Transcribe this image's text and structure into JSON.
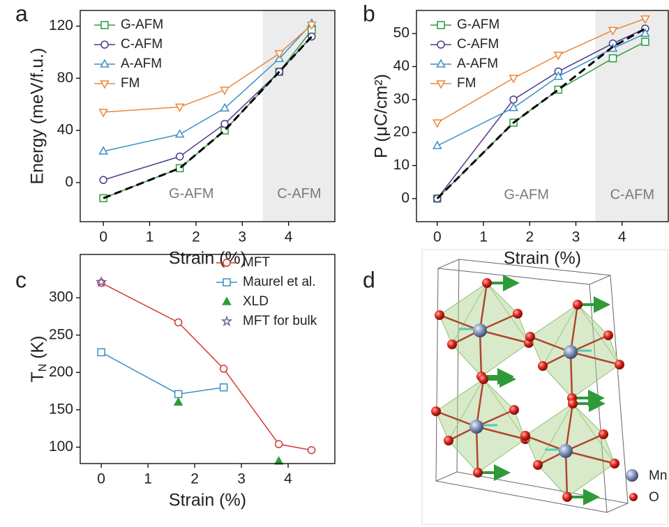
{
  "chart_data": [
    {
      "panel": "a",
      "type": "line",
      "xlabel": "Strain (%)",
      "ylabel": "Energy (meV/f.u.)",
      "x": [
        0,
        1.65,
        2.62,
        3.8,
        4.5
      ],
      "xlim": [
        -0.5,
        5
      ],
      "xticks": [
        0,
        1,
        2,
        3,
        4
      ],
      "ylim": [
        -30,
        132
      ],
      "yticks": [
        0,
        40,
        80,
        120
      ],
      "shaded_xrange": [
        3.44,
        5
      ],
      "legend": "upper left",
      "annotations": [
        {
          "text": "G-AFM",
          "x": 1.9,
          "y": -9
        },
        {
          "text": "C-AFM",
          "x": 4.23,
          "y": -9
        }
      ],
      "series": [
        {
          "name": "G-AFM",
          "color": "#2e9a3e",
          "marker": "square",
          "values": [
            -12,
            11,
            40,
            85,
            117
          ]
        },
        {
          "name": "C-AFM",
          "color": "#4b3a8c",
          "marker": "circle",
          "values": [
            2,
            20,
            45,
            85,
            112
          ]
        },
        {
          "name": "A-AFM",
          "color": "#3b8fc4",
          "marker": "triangle-up",
          "values": [
            24,
            37,
            57,
            95,
            122
          ]
        },
        {
          "name": "FM",
          "color": "#e8873a",
          "marker": "triangle-down",
          "values": [
            54,
            58,
            71,
            99,
            121
          ]
        },
        {
          "color": "#000000",
          "dashed": true,
          "values": [
            -12,
            11,
            40,
            85,
            112
          ]
        }
      ]
    },
    {
      "panel": "b",
      "type": "line",
      "xlabel": "Strain (%)",
      "ylabel": "P (μC/cm²)",
      "x": [
        0,
        1.65,
        2.62,
        3.8,
        4.5
      ],
      "xlim": [
        -0.45,
        5
      ],
      "xticks": [
        0,
        1,
        2,
        3,
        4
      ],
      "ylim": [
        -7,
        57
      ],
      "yticks": [
        0,
        10,
        20,
        30,
        40,
        50
      ],
      "shaded_xrange": [
        3.42,
        5
      ],
      "legend": "upper left",
      "annotations": [
        {
          "text": "G-AFM",
          "x": 1.93,
          "y": 1
        },
        {
          "text": "C-AFM",
          "x": 4.22,
          "y": 1
        }
      ],
      "series": [
        {
          "name": "G-AFM",
          "color": "#2e9a3e",
          "marker": "square",
          "values": [
            0,
            23,
            33,
            42.5,
            47.5
          ]
        },
        {
          "name": "C-AFM",
          "color": "#4b3a8c",
          "marker": "circle",
          "values": [
            0,
            30,
            38.5,
            47,
            51.5
          ]
        },
        {
          "name": "A-AFM",
          "color": "#3b8fc4",
          "marker": "triangle-up",
          "values": [
            16,
            27.5,
            37,
            45.5,
            50
          ]
        },
        {
          "name": "FM",
          "color": "#e8873a",
          "marker": "triangle-down",
          "values": [
            23,
            36.5,
            43.5,
            51,
            54.5
          ]
        },
        {
          "color": "#000000",
          "dashed": true,
          "values": [
            0,
            23,
            33,
            46,
            51.5
          ]
        }
      ]
    },
    {
      "panel": "c",
      "type": "line",
      "xlabel": "Strain (%)",
      "ylabel_parts": [
        "T",
        "N",
        " (K)"
      ],
      "xlim": [
        -0.45,
        5
      ],
      "xticks": [
        0,
        1,
        2,
        3,
        4
      ],
      "ylim": [
        78,
        358
      ],
      "yticks": [
        100,
        150,
        200,
        250,
        300
      ],
      "legend": "upper right",
      "series": [
        {
          "name": "MFT",
          "color": "#d03a2e",
          "marker": "circle",
          "x": [
            0,
            1.65,
            2.62,
            3.8,
            4.5
          ],
          "values": [
            320,
            267,
            205,
            104,
            96
          ]
        },
        {
          "name": "Maurel et al.",
          "color": "#3b8fc4",
          "marker": "square",
          "x": [
            0,
            1.65,
            2.62
          ],
          "values": [
            227,
            171,
            180
          ]
        },
        {
          "name": "XLD",
          "color": "#2f9a3a",
          "marker": "triangle-up",
          "filled": true,
          "mode": "markers",
          "x": [
            1.65,
            3.8
          ],
          "values": [
            160,
            81
          ]
        },
        {
          "name": "MFT for bulk",
          "color": "#7a5ca8",
          "marker": "star",
          "mode": "markers",
          "x": [
            0
          ],
          "values": [
            321
          ]
        }
      ]
    }
  ],
  "structure": {
    "panel": "d",
    "legend": [
      "Mn",
      "O"
    ]
  }
}
